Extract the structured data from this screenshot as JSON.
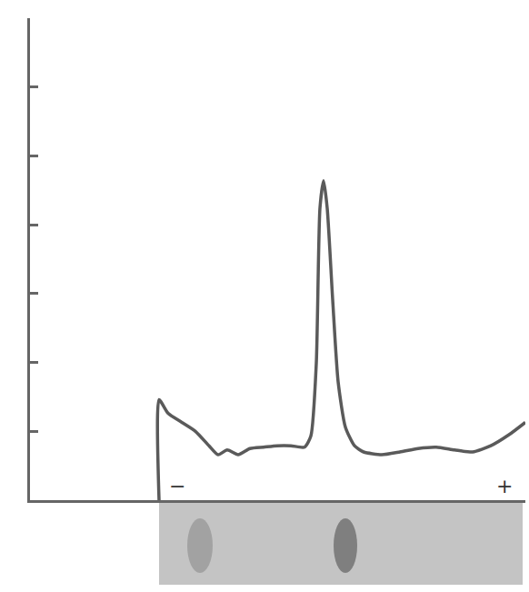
{
  "chart_data": {
    "type": "line",
    "x": [
      142,
      142,
      152,
      167,
      182,
      197,
      207,
      217,
      229,
      242,
      257,
      272,
      287,
      302,
      309,
      315,
      319,
      323,
      327,
      333,
      339,
      347,
      357,
      367,
      387,
      407,
      427,
      447,
      467,
      487,
      507,
      527,
      545
    ],
    "values": [
      0,
      1.46,
      1.26,
      1.13,
      1.0,
      0.79,
      0.66,
      0.73,
      0.66,
      0.75,
      0.77,
      0.79,
      0.79,
      0.77,
      0.93,
      1.99,
      4.24,
      4.64,
      4.24,
      2.91,
      1.72,
      1.06,
      0.79,
      0.7,
      0.66,
      0.7,
      0.75,
      0.77,
      0.73,
      0.7,
      0.79,
      0.95,
      1.13
    ],
    "color": "#5a5a5a",
    "xlim": [
      0,
      545
    ],
    "ylim": [
      0,
      7
    ],
    "xticks": [],
    "yticks": [
      0,
      1,
      2,
      3,
      4,
      5,
      6,
      7
    ],
    "grid": false,
    "tick_labels": false,
    "annotations": [
      {
        "text": "−",
        "x": 162,
        "y": 0.2
      },
      {
        "text": "+",
        "x": 522,
        "y": 0.2
      }
    ],
    "bands": [
      187,
      347
    ],
    "strip": [
      142,
      542
    ]
  }
}
